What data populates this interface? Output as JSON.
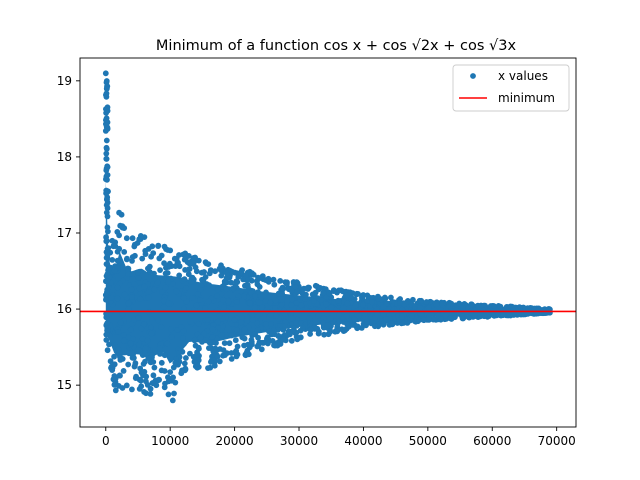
{
  "chart_data": {
    "type": "scatter",
    "title": "Minimum of a function cos x + cos √2x + cos √3x",
    "xlabel": "",
    "ylabel": "",
    "xlim": [
      -4000,
      73000
    ],
    "ylim": [
      14.45,
      19.3
    ],
    "x_ticks": [
      0,
      10000,
      20000,
      30000,
      40000,
      50000,
      60000,
      70000
    ],
    "x_tick_labels": [
      "0",
      "10000",
      "20000",
      "30000",
      "40000",
      "50000",
      "60000",
      "70000"
    ],
    "y_ticks": [
      15,
      16,
      17,
      18,
      19
    ],
    "y_tick_labels": [
      "15",
      "16",
      "17",
      "18",
      "19"
    ],
    "grid": false,
    "legend_position": "top-right",
    "series": [
      {
        "name": "x values",
        "kind": "scatter",
        "color": "#1f77b4",
        "x_range": [
          0,
          69000
        ],
        "center": 15.97,
        "point_count": 1600,
        "envelope_upper": [
          [
            0,
            19.1
          ],
          [
            500,
            17.0
          ],
          [
            1500,
            16.9
          ],
          [
            2000,
            17.45
          ],
          [
            3500,
            16.9
          ],
          [
            5500,
            17.0
          ],
          [
            7000,
            16.85
          ],
          [
            11000,
            16.8
          ],
          [
            15000,
            16.65
          ],
          [
            20000,
            16.55
          ],
          [
            24000,
            16.45
          ],
          [
            30000,
            16.35
          ],
          [
            40000,
            16.2
          ],
          [
            50000,
            16.1
          ],
          [
            60000,
            16.05
          ],
          [
            69000,
            16.0
          ]
        ],
        "envelope_lower": [
          [
            0,
            15.5
          ],
          [
            1500,
            14.9
          ],
          [
            5000,
            14.95
          ],
          [
            6500,
            14.85
          ],
          [
            9000,
            15.0
          ],
          [
            10000,
            14.7
          ],
          [
            13000,
            15.25
          ],
          [
            16000,
            15.2
          ],
          [
            20000,
            15.35
          ],
          [
            30000,
            15.6
          ],
          [
            40000,
            15.75
          ],
          [
            50000,
            15.85
          ],
          [
            60000,
            15.9
          ],
          [
            69000,
            15.95
          ]
        ]
      },
      {
        "name": "minimum",
        "kind": "hline",
        "color": "#ff0000",
        "y": 15.97
      }
    ]
  }
}
